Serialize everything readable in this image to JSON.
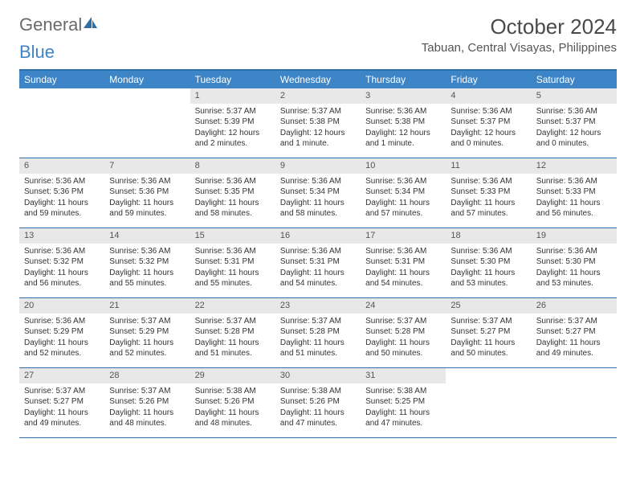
{
  "logo": {
    "text1": "General",
    "text2": "Blue"
  },
  "title": "October 2024",
  "location": "Tabuan, Central Visayas, Philippines",
  "header_bg": "#3d85c6",
  "border_color": "#2f6fa8",
  "daynum_bg": "#e8e8e8",
  "weekdays": [
    "Sunday",
    "Monday",
    "Tuesday",
    "Wednesday",
    "Thursday",
    "Friday",
    "Saturday"
  ],
  "weeks": [
    [
      null,
      null,
      {
        "n": "1",
        "sr": "Sunrise: 5:37 AM",
        "ss": "Sunset: 5:39 PM",
        "dl": "Daylight: 12 hours and 2 minutes."
      },
      {
        "n": "2",
        "sr": "Sunrise: 5:37 AM",
        "ss": "Sunset: 5:38 PM",
        "dl": "Daylight: 12 hours and 1 minute."
      },
      {
        "n": "3",
        "sr": "Sunrise: 5:36 AM",
        "ss": "Sunset: 5:38 PM",
        "dl": "Daylight: 12 hours and 1 minute."
      },
      {
        "n": "4",
        "sr": "Sunrise: 5:36 AM",
        "ss": "Sunset: 5:37 PM",
        "dl": "Daylight: 12 hours and 0 minutes."
      },
      {
        "n": "5",
        "sr": "Sunrise: 5:36 AM",
        "ss": "Sunset: 5:37 PM",
        "dl": "Daylight: 12 hours and 0 minutes."
      }
    ],
    [
      {
        "n": "6",
        "sr": "Sunrise: 5:36 AM",
        "ss": "Sunset: 5:36 PM",
        "dl": "Daylight: 11 hours and 59 minutes."
      },
      {
        "n": "7",
        "sr": "Sunrise: 5:36 AM",
        "ss": "Sunset: 5:36 PM",
        "dl": "Daylight: 11 hours and 59 minutes."
      },
      {
        "n": "8",
        "sr": "Sunrise: 5:36 AM",
        "ss": "Sunset: 5:35 PM",
        "dl": "Daylight: 11 hours and 58 minutes."
      },
      {
        "n": "9",
        "sr": "Sunrise: 5:36 AM",
        "ss": "Sunset: 5:34 PM",
        "dl": "Daylight: 11 hours and 58 minutes."
      },
      {
        "n": "10",
        "sr": "Sunrise: 5:36 AM",
        "ss": "Sunset: 5:34 PM",
        "dl": "Daylight: 11 hours and 57 minutes."
      },
      {
        "n": "11",
        "sr": "Sunrise: 5:36 AM",
        "ss": "Sunset: 5:33 PM",
        "dl": "Daylight: 11 hours and 57 minutes."
      },
      {
        "n": "12",
        "sr": "Sunrise: 5:36 AM",
        "ss": "Sunset: 5:33 PM",
        "dl": "Daylight: 11 hours and 56 minutes."
      }
    ],
    [
      {
        "n": "13",
        "sr": "Sunrise: 5:36 AM",
        "ss": "Sunset: 5:32 PM",
        "dl": "Daylight: 11 hours and 56 minutes."
      },
      {
        "n": "14",
        "sr": "Sunrise: 5:36 AM",
        "ss": "Sunset: 5:32 PM",
        "dl": "Daylight: 11 hours and 55 minutes."
      },
      {
        "n": "15",
        "sr": "Sunrise: 5:36 AM",
        "ss": "Sunset: 5:31 PM",
        "dl": "Daylight: 11 hours and 55 minutes."
      },
      {
        "n": "16",
        "sr": "Sunrise: 5:36 AM",
        "ss": "Sunset: 5:31 PM",
        "dl": "Daylight: 11 hours and 54 minutes."
      },
      {
        "n": "17",
        "sr": "Sunrise: 5:36 AM",
        "ss": "Sunset: 5:31 PM",
        "dl": "Daylight: 11 hours and 54 minutes."
      },
      {
        "n": "18",
        "sr": "Sunrise: 5:36 AM",
        "ss": "Sunset: 5:30 PM",
        "dl": "Daylight: 11 hours and 53 minutes."
      },
      {
        "n": "19",
        "sr": "Sunrise: 5:36 AM",
        "ss": "Sunset: 5:30 PM",
        "dl": "Daylight: 11 hours and 53 minutes."
      }
    ],
    [
      {
        "n": "20",
        "sr": "Sunrise: 5:36 AM",
        "ss": "Sunset: 5:29 PM",
        "dl": "Daylight: 11 hours and 52 minutes."
      },
      {
        "n": "21",
        "sr": "Sunrise: 5:37 AM",
        "ss": "Sunset: 5:29 PM",
        "dl": "Daylight: 11 hours and 52 minutes."
      },
      {
        "n": "22",
        "sr": "Sunrise: 5:37 AM",
        "ss": "Sunset: 5:28 PM",
        "dl": "Daylight: 11 hours and 51 minutes."
      },
      {
        "n": "23",
        "sr": "Sunrise: 5:37 AM",
        "ss": "Sunset: 5:28 PM",
        "dl": "Daylight: 11 hours and 51 minutes."
      },
      {
        "n": "24",
        "sr": "Sunrise: 5:37 AM",
        "ss": "Sunset: 5:28 PM",
        "dl": "Daylight: 11 hours and 50 minutes."
      },
      {
        "n": "25",
        "sr": "Sunrise: 5:37 AM",
        "ss": "Sunset: 5:27 PM",
        "dl": "Daylight: 11 hours and 50 minutes."
      },
      {
        "n": "26",
        "sr": "Sunrise: 5:37 AM",
        "ss": "Sunset: 5:27 PM",
        "dl": "Daylight: 11 hours and 49 minutes."
      }
    ],
    [
      {
        "n": "27",
        "sr": "Sunrise: 5:37 AM",
        "ss": "Sunset: 5:27 PM",
        "dl": "Daylight: 11 hours and 49 minutes."
      },
      {
        "n": "28",
        "sr": "Sunrise: 5:37 AM",
        "ss": "Sunset: 5:26 PM",
        "dl": "Daylight: 11 hours and 48 minutes."
      },
      {
        "n": "29",
        "sr": "Sunrise: 5:38 AM",
        "ss": "Sunset: 5:26 PM",
        "dl": "Daylight: 11 hours and 48 minutes."
      },
      {
        "n": "30",
        "sr": "Sunrise: 5:38 AM",
        "ss": "Sunset: 5:26 PM",
        "dl": "Daylight: 11 hours and 47 minutes."
      },
      {
        "n": "31",
        "sr": "Sunrise: 5:38 AM",
        "ss": "Sunset: 5:25 PM",
        "dl": "Daylight: 11 hours and 47 minutes."
      },
      null,
      null
    ]
  ]
}
